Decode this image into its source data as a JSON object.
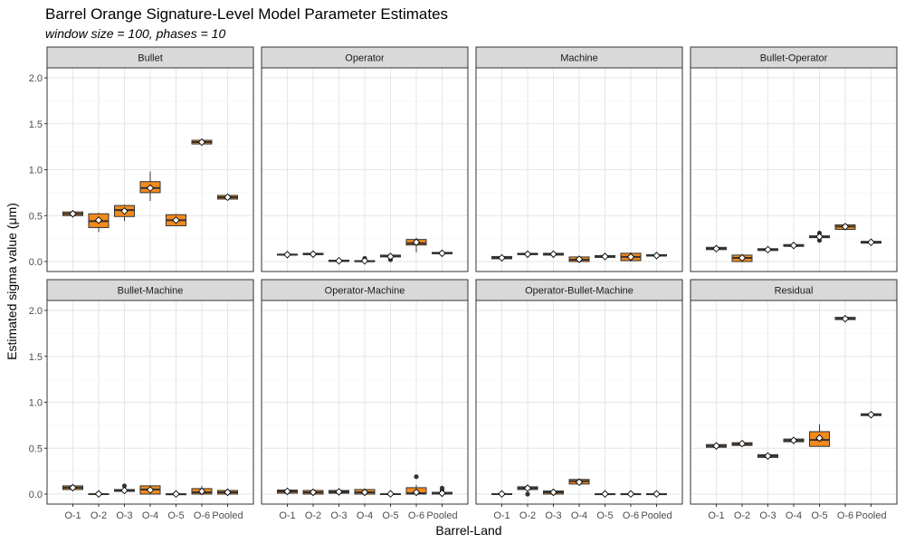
{
  "chart_data": {
    "type": "box",
    "title": "Barrel Orange Signature-Level Model Parameter Estimates",
    "subtitle": "window size = 100, phases = 10",
    "xlabel": "Barrel-Land",
    "ylabel": "Estimated sigma value (μm)",
    "ylim": [
      0,
      2.0
    ],
    "yticks": [
      "0.0",
      "0.5",
      "1.0",
      "1.5",
      "2.0"
    ],
    "categories": [
      "O-1",
      "O-2",
      "O-3",
      "O-4",
      "O-5",
      "O-6",
      "Pooled"
    ],
    "fill_color": "#F28A1F",
    "mean_marker_color": "#ffffff",
    "grid": true,
    "facets": [
      {
        "name": "Bullet",
        "boxes": [
          {
            "q1": 0.5,
            "median": 0.52,
            "q3": 0.54,
            "min": 0.49,
            "max": 0.55,
            "mean": 0.52,
            "outliers": []
          },
          {
            "q1": 0.37,
            "median": 0.44,
            "q3": 0.52,
            "min": 0.32,
            "max": 0.53,
            "mean": 0.45,
            "outliers": []
          },
          {
            "q1": 0.49,
            "median": 0.56,
            "q3": 0.61,
            "min": 0.44,
            "max": 0.62,
            "mean": 0.55,
            "outliers": []
          },
          {
            "q1": 0.75,
            "median": 0.8,
            "q3": 0.87,
            "min": 0.66,
            "max": 0.98,
            "mean": 0.8,
            "outliers": []
          },
          {
            "q1": 0.39,
            "median": 0.45,
            "q3": 0.51,
            "min": 0.39,
            "max": 0.52,
            "mean": 0.45,
            "outliers": []
          },
          {
            "q1": 1.28,
            "median": 1.3,
            "q3": 1.32,
            "min": 1.27,
            "max": 1.34,
            "mean": 1.3,
            "outliers": []
          },
          {
            "q1": 0.68,
            "median": 0.7,
            "q3": 0.72,
            "min": 0.67,
            "max": 0.73,
            "mean": 0.7,
            "outliers": []
          }
        ]
      },
      {
        "name": "Operator",
        "boxes": [
          {
            "q1": 0.07,
            "median": 0.075,
            "q3": 0.08,
            "min": 0.065,
            "max": 0.085,
            "mean": 0.075,
            "outliers": []
          },
          {
            "q1": 0.075,
            "median": 0.08,
            "q3": 0.09,
            "min": 0.07,
            "max": 0.095,
            "mean": 0.08,
            "outliers": []
          },
          {
            "q1": 0.0,
            "median": 0.005,
            "q3": 0.015,
            "min": 0.0,
            "max": 0.03,
            "mean": 0.008,
            "outliers": []
          },
          {
            "q1": 0.0,
            "median": 0.003,
            "q3": 0.01,
            "min": 0.0,
            "max": 0.02,
            "mean": 0.008,
            "outliers": [
              0.035
            ]
          },
          {
            "q1": 0.05,
            "median": 0.06,
            "q3": 0.07,
            "min": 0.04,
            "max": 0.075,
            "mean": 0.055,
            "outliers": [
              0.02
            ]
          },
          {
            "q1": 0.18,
            "median": 0.2,
            "q3": 0.24,
            "min": 0.1,
            "max": 0.26,
            "mean": 0.21,
            "outliers": []
          },
          {
            "q1": 0.085,
            "median": 0.09,
            "q3": 0.1,
            "min": 0.08,
            "max": 0.105,
            "mean": 0.09,
            "outliers": []
          }
        ]
      },
      {
        "name": "Machine",
        "boxes": [
          {
            "q1": 0.03,
            "median": 0.04,
            "q3": 0.055,
            "min": 0.02,
            "max": 0.06,
            "mean": 0.04,
            "outliers": []
          },
          {
            "q1": 0.075,
            "median": 0.08,
            "q3": 0.09,
            "min": 0.07,
            "max": 0.095,
            "mean": 0.08,
            "outliers": []
          },
          {
            "q1": 0.07,
            "median": 0.08,
            "q3": 0.09,
            "min": 0.065,
            "max": 0.1,
            "mean": 0.08,
            "outliers": []
          },
          {
            "q1": 0.0,
            "median": 0.02,
            "q3": 0.05,
            "min": 0.0,
            "max": 0.055,
            "mean": 0.025,
            "outliers": []
          },
          {
            "q1": 0.045,
            "median": 0.055,
            "q3": 0.065,
            "min": 0.04,
            "max": 0.07,
            "mean": 0.055,
            "outliers": []
          },
          {
            "q1": 0.01,
            "median": 0.05,
            "q3": 0.09,
            "min": 0.0,
            "max": 0.1,
            "mean": 0.05,
            "outliers": []
          },
          {
            "q1": 0.06,
            "median": 0.065,
            "q3": 0.075,
            "min": 0.055,
            "max": 0.08,
            "mean": 0.065,
            "outliers": []
          }
        ]
      },
      {
        "name": "Bullet-Operator",
        "boxes": [
          {
            "q1": 0.13,
            "median": 0.14,
            "q3": 0.155,
            "min": 0.12,
            "max": 0.16,
            "mean": 0.14,
            "outliers": []
          },
          {
            "q1": 0.0,
            "median": 0.04,
            "q3": 0.07,
            "min": 0.0,
            "max": 0.08,
            "mean": 0.04,
            "outliers": []
          },
          {
            "q1": 0.12,
            "median": 0.13,
            "q3": 0.14,
            "min": 0.11,
            "max": 0.145,
            "mean": 0.13,
            "outliers": []
          },
          {
            "q1": 0.165,
            "median": 0.175,
            "q3": 0.185,
            "min": 0.16,
            "max": 0.19,
            "mean": 0.175,
            "outliers": []
          },
          {
            "q1": 0.26,
            "median": 0.27,
            "q3": 0.28,
            "min": 0.255,
            "max": 0.285,
            "mean": 0.27,
            "outliers": [
              0.23,
              0.31
            ]
          },
          {
            "q1": 0.35,
            "median": 0.38,
            "q3": 0.4,
            "min": 0.34,
            "max": 0.41,
            "mean": 0.38,
            "outliers": []
          },
          {
            "q1": 0.2,
            "median": 0.21,
            "q3": 0.22,
            "min": 0.195,
            "max": 0.225,
            "mean": 0.21,
            "outliers": []
          }
        ]
      },
      {
        "name": "Bullet-Machine",
        "boxes": [
          {
            "q1": 0.05,
            "median": 0.07,
            "q3": 0.09,
            "min": 0.04,
            "max": 0.1,
            "mean": 0.07,
            "outliers": []
          },
          {
            "q1": 0.0,
            "median": 0.0,
            "q3": 0.005,
            "min": 0.0,
            "max": 0.008,
            "mean": 0.002,
            "outliers": []
          },
          {
            "q1": 0.03,
            "median": 0.04,
            "q3": 0.05,
            "min": 0.02,
            "max": 0.055,
            "mean": 0.04,
            "outliers": [
              0.09
            ]
          },
          {
            "q1": 0.0,
            "median": 0.05,
            "q3": 0.09,
            "min": 0.0,
            "max": 0.095,
            "mean": 0.045,
            "outliers": []
          },
          {
            "q1": 0.0,
            "median": 0.0,
            "q3": 0.003,
            "min": 0.0,
            "max": 0.006,
            "mean": 0.002,
            "outliers": []
          },
          {
            "q1": 0.0,
            "median": 0.02,
            "q3": 0.06,
            "min": 0.0,
            "max": 0.09,
            "mean": 0.03,
            "outliers": []
          },
          {
            "q1": 0.0,
            "median": 0.02,
            "q3": 0.04,
            "min": 0.0,
            "max": 0.045,
            "mean": 0.02,
            "outliers": []
          }
        ]
      },
      {
        "name": "Operator-Machine",
        "boxes": [
          {
            "q1": 0.01,
            "median": 0.03,
            "q3": 0.045,
            "min": 0.0,
            "max": 0.05,
            "mean": 0.03,
            "outliers": []
          },
          {
            "q1": 0.0,
            "median": 0.02,
            "q3": 0.04,
            "min": 0.0,
            "max": 0.045,
            "mean": 0.02,
            "outliers": []
          },
          {
            "q1": 0.01,
            "median": 0.025,
            "q3": 0.04,
            "min": 0.005,
            "max": 0.045,
            "mean": 0.025,
            "outliers": []
          },
          {
            "q1": 0.0,
            "median": 0.02,
            "q3": 0.05,
            "min": 0.0,
            "max": 0.055,
            "mean": 0.02,
            "outliers": []
          },
          {
            "q1": 0.0,
            "median": 0.0,
            "q3": 0.005,
            "min": 0.0,
            "max": 0.008,
            "mean": 0.003,
            "outliers": []
          },
          {
            "q1": 0.0,
            "median": 0.01,
            "q3": 0.07,
            "min": 0.0,
            "max": 0.1,
            "mean": 0.02,
            "outliers": [
              0.19
            ]
          },
          {
            "q1": 0.0,
            "median": 0.005,
            "q3": 0.02,
            "min": 0.0,
            "max": 0.03,
            "mean": 0.01,
            "outliers": [
              0.04,
              0.065
            ]
          }
        ]
      },
      {
        "name": "Operator-Bullet-Machine",
        "boxes": [
          {
            "q1": 0.0,
            "median": 0.0,
            "q3": 0.005,
            "min": 0.0,
            "max": 0.008,
            "mean": 0.002,
            "outliers": []
          },
          {
            "q1": 0.05,
            "median": 0.065,
            "q3": 0.08,
            "min": 0.04,
            "max": 0.085,
            "mean": 0.065,
            "outliers": [
              0.0
            ]
          },
          {
            "q1": 0.0,
            "median": 0.02,
            "q3": 0.035,
            "min": 0.0,
            "max": 0.04,
            "mean": 0.02,
            "outliers": []
          },
          {
            "q1": 0.11,
            "median": 0.14,
            "q3": 0.16,
            "min": 0.1,
            "max": 0.17,
            "mean": 0.13,
            "outliers": []
          },
          {
            "q1": 0.0,
            "median": 0.0,
            "q3": 0.004,
            "min": 0.0,
            "max": 0.006,
            "mean": 0.002,
            "outliers": []
          },
          {
            "q1": 0.0,
            "median": 0.0,
            "q3": 0.004,
            "min": 0.0,
            "max": 0.006,
            "mean": 0.002,
            "outliers": []
          },
          {
            "q1": 0.0,
            "median": 0.0,
            "q3": 0.004,
            "min": 0.0,
            "max": 0.006,
            "mean": 0.002,
            "outliers": []
          }
        ]
      },
      {
        "name": "Residual",
        "boxes": [
          {
            "q1": 0.51,
            "median": 0.525,
            "q3": 0.54,
            "min": 0.5,
            "max": 0.545,
            "mean": 0.525,
            "outliers": []
          },
          {
            "q1": 0.53,
            "median": 0.545,
            "q3": 0.56,
            "min": 0.52,
            "max": 0.57,
            "mean": 0.55,
            "outliers": []
          },
          {
            "q1": 0.4,
            "median": 0.415,
            "q3": 0.43,
            "min": 0.39,
            "max": 0.435,
            "mean": 0.415,
            "outliers": []
          },
          {
            "q1": 0.57,
            "median": 0.585,
            "q3": 0.6,
            "min": 0.565,
            "max": 0.605,
            "mean": 0.585,
            "outliers": []
          },
          {
            "q1": 0.52,
            "median": 0.59,
            "q3": 0.68,
            "min": 0.52,
            "max": 0.76,
            "mean": 0.61,
            "outliers": []
          },
          {
            "q1": 1.9,
            "median": 1.91,
            "q3": 1.925,
            "min": 1.895,
            "max": 1.93,
            "mean": 1.91,
            "outliers": []
          },
          {
            "q1": 0.855,
            "median": 0.865,
            "q3": 0.875,
            "min": 0.85,
            "max": 0.88,
            "mean": 0.865,
            "outliers": []
          }
        ]
      }
    ]
  }
}
